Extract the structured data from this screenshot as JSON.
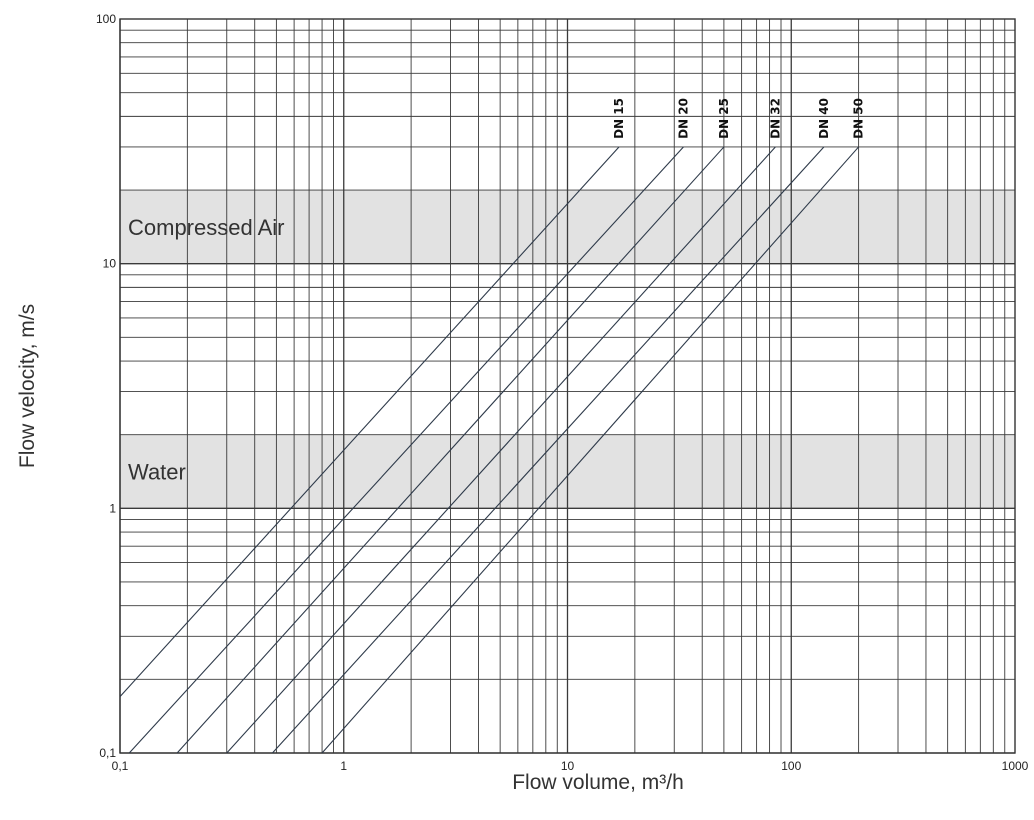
{
  "chart_data": {
    "type": "line",
    "title": "",
    "xlabel": "Flow volume, m³/h",
    "ylabel": "Flow velocity, m/s",
    "xscale": "log",
    "yscale": "log",
    "xlim": [
      0.1,
      1000
    ],
    "ylim": [
      0.1,
      100
    ],
    "grid": true,
    "x_tick_labels": [
      "0,1",
      "1",
      "10",
      "100",
      "1000"
    ],
    "y_tick_labels": [
      "0,1",
      "1",
      "10",
      "100"
    ],
    "bands": [
      {
        "label": "Compressed Air",
        "y_range": [
          10,
          20
        ]
      },
      {
        "label": "Water",
        "y_range": [
          1,
          2
        ]
      }
    ],
    "series": [
      {
        "name": "DN 15",
        "points": [
          [
            0.1,
            0.17
          ],
          [
            17,
            30
          ]
        ]
      },
      {
        "name": "DN 20",
        "points": [
          [
            0.11,
            0.1
          ],
          [
            33,
            30
          ]
        ]
      },
      {
        "name": "DN 25",
        "points": [
          [
            0.18,
            0.1
          ],
          [
            50,
            30
          ]
        ]
      },
      {
        "name": "DN 32",
        "points": [
          [
            0.3,
            0.1
          ],
          [
            85,
            30
          ]
        ]
      },
      {
        "name": "DN 40",
        "points": [
          [
            0.48,
            0.1
          ],
          [
            140,
            30
          ]
        ]
      },
      {
        "name": "DN 50",
        "points": [
          [
            0.8,
            0.1
          ],
          [
            200,
            30
          ]
        ]
      }
    ]
  }
}
